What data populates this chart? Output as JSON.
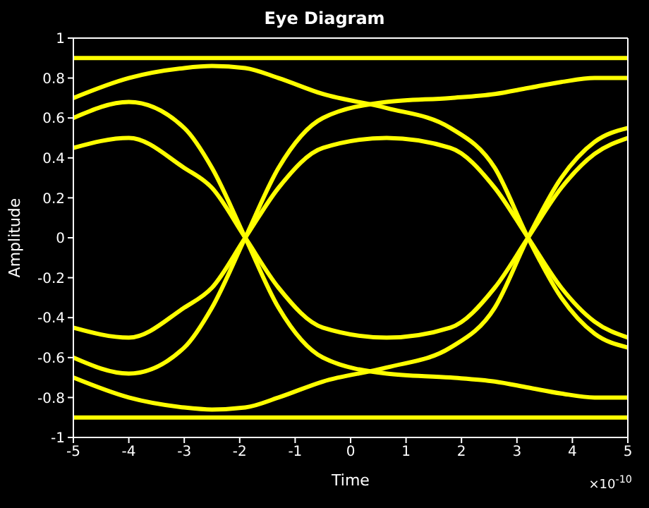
{
  "chart_data": {
    "type": "line",
    "title": "Eye Diagram",
    "xlabel": "Time",
    "ylabel": "Amplitude",
    "annotations": [
      "×10$^{-10}$"
    ],
    "x": [
      -5,
      -4,
      -3,
      -2.5,
      -1.9,
      -1.3,
      -0.5,
      0.65,
      1.8,
      2.6,
      3.2,
      3.8,
      4.4,
      5
    ],
    "series": [
      {
        "color": "#ffff00",
        "values": [
          0.45,
          0.5,
          0.35,
          0.25,
          0,
          -0.25,
          -0.45,
          -0.5,
          -0.45,
          -0.25,
          0,
          0.25,
          0.42,
          0.5
        ]
      },
      {
        "color": "#ffff00",
        "values": [
          -0.45,
          -0.5,
          -0.35,
          -0.25,
          0,
          0.25,
          0.45,
          0.5,
          0.45,
          0.25,
          0,
          -0.25,
          -0.42,
          -0.5
        ]
      },
      {
        "color": "#ffff00",
        "values": [
          0.6,
          0.68,
          0.55,
          0.35,
          0,
          -0.35,
          -0.6,
          -0.68,
          -0.7,
          -0.72,
          -0.75,
          -0.78,
          -0.8,
          -0.8
        ]
      },
      {
        "color": "#ffff00",
        "values": [
          -0.6,
          -0.68,
          -0.55,
          -0.35,
          0,
          0.35,
          0.6,
          0.68,
          0.7,
          0.72,
          0.75,
          0.78,
          0.8,
          0.8
        ]
      },
      {
        "color": "#ffff00",
        "values": [
          0.7,
          0.8,
          0.85,
          0.86,
          0.85,
          0.8,
          0.72,
          0.65,
          0.55,
          0.35,
          0,
          -0.3,
          -0.48,
          -0.55
        ]
      },
      {
        "color": "#ffff00",
        "values": [
          -0.7,
          -0.8,
          -0.85,
          -0.86,
          -0.85,
          -0.8,
          -0.72,
          -0.65,
          -0.55,
          -0.35,
          0,
          0.3,
          0.48,
          0.55
        ]
      },
      {
        "color": "#ffff00",
        "values": [
          0.9,
          0.9,
          0.9,
          0.9,
          0.9,
          0.9,
          0.9,
          0.9,
          0.9,
          0.9,
          0.9,
          0.9,
          0.9,
          0.9
        ]
      },
      {
        "color": "#ffff00",
        "values": [
          -0.9,
          -0.9,
          -0.9,
          -0.9,
          -0.9,
          -0.9,
          -0.9,
          -0.9,
          -0.9,
          -0.9,
          -0.9,
          -0.9,
          -0.9,
          -0.9
        ]
      }
    ],
    "xlim": [
      -5,
      5
    ],
    "xticks": [
      -5,
      -4,
      -3,
      -2,
      -1,
      0,
      1,
      2,
      3,
      4,
      5
    ],
    "ylim": [
      -1,
      1
    ],
    "yticks": [
      -1,
      -0.8,
      -0.6,
      -0.4,
      -0.2,
      0,
      0.2,
      0.4,
      0.6,
      0.8,
      1
    ],
    "grid": false,
    "legend": false,
    "marker": "none",
    "line_style": "solid"
  }
}
